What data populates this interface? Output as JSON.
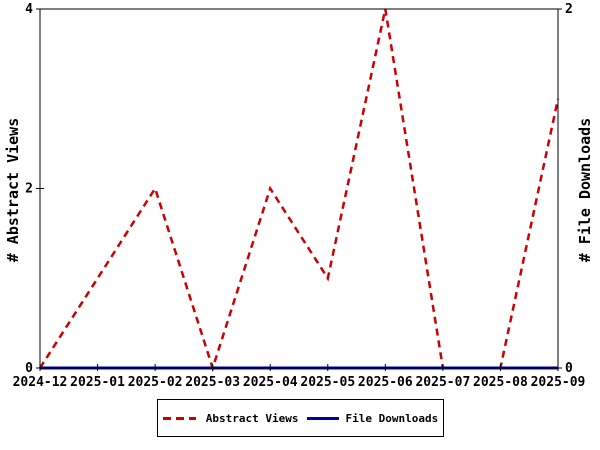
{
  "chart_data": {
    "type": "line",
    "title": "",
    "categories": [
      "2024-12",
      "2025-01",
      "2025-02",
      "2025-03",
      "2025-04",
      "2025-05",
      "2025-06",
      "2025-07",
      "2025-08",
      "2025-09"
    ],
    "series": [
      {
        "name": "Abstract Views",
        "axis": "left",
        "color": "#cc0000",
        "style": "dashed",
        "width": 2.5,
        "values": [
          0,
          1,
          2,
          0,
          2,
          1,
          4,
          0,
          0,
          3
        ]
      },
      {
        "name": "File Downloads",
        "axis": "right",
        "color": "#0000aa",
        "style": "solid",
        "width": 3,
        "values": [
          0,
          0,
          0,
          0,
          0,
          0,
          0,
          0,
          0,
          0
        ]
      }
    ],
    "y_left": {
      "label": "# Abstract Views",
      "min": 0,
      "max": 4,
      "ticks": [
        0,
        2,
        4
      ]
    },
    "y_right": {
      "label": "# File Downloads",
      "min": 0,
      "max": 2,
      "ticks": [
        0,
        2
      ]
    },
    "x_axis": {
      "label": ""
    },
    "grid": false,
    "legend_position": "bottom-center",
    "background_color": "#ffffff",
    "axis_color": "#000000"
  }
}
